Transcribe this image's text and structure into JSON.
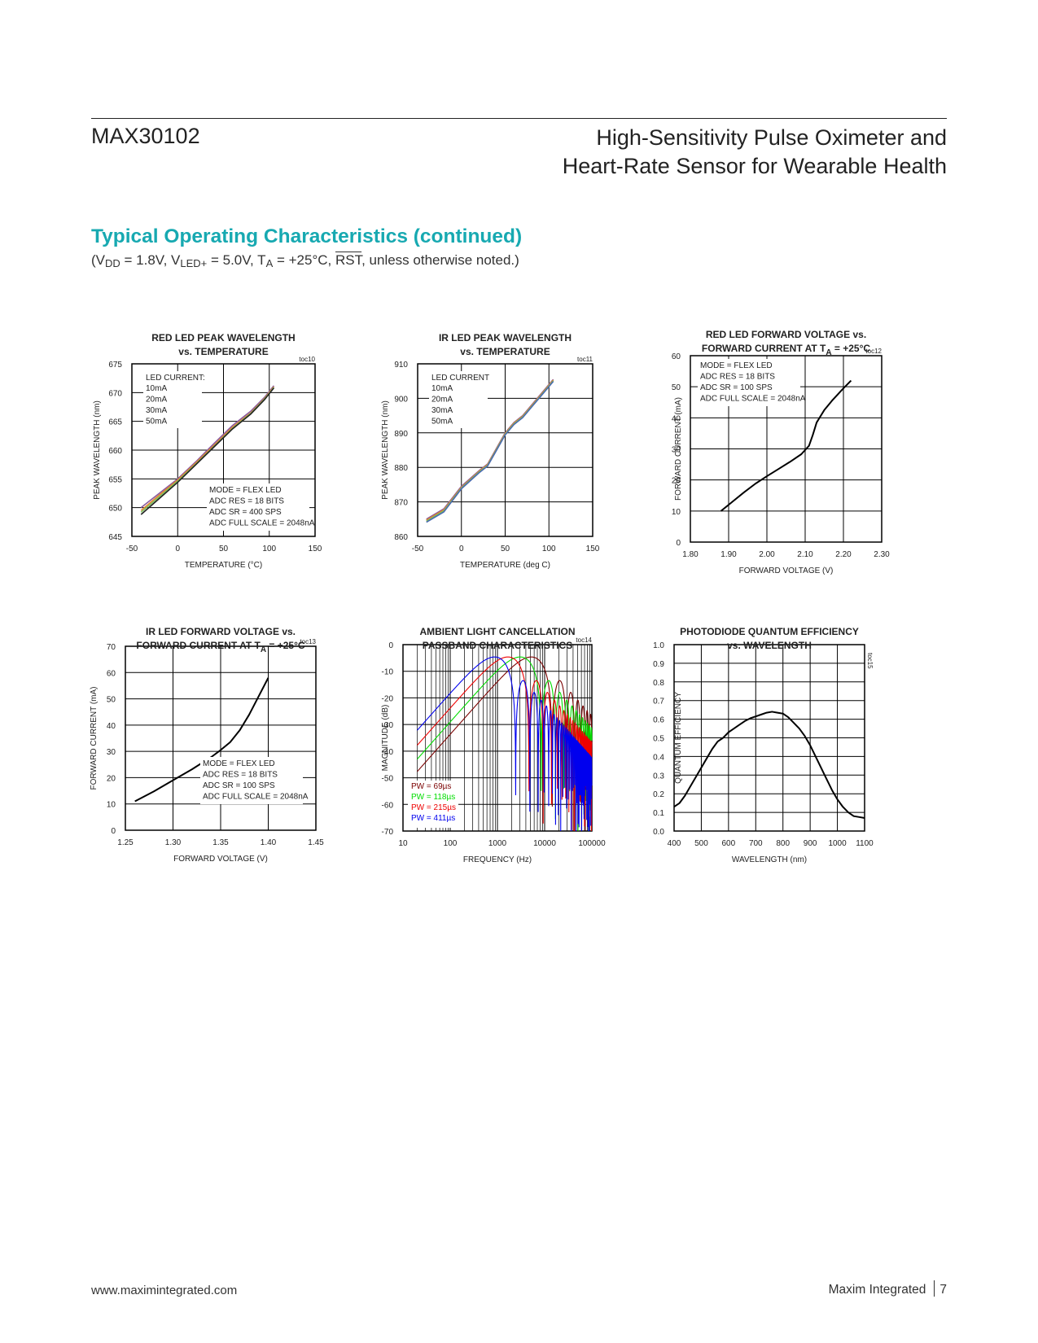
{
  "header": {
    "part_number": "MAX30102",
    "title_line1": "High-Sensitivity Pulse Oximeter and",
    "title_line2": "Heart-Rate Sensor for Wearable Health"
  },
  "section": {
    "heading": "Typical Operating Characteristics (continued)",
    "conditions": {
      "open": "(V",
      "vdd_sub": "DD",
      "mid1": " = 1.8V, V",
      "vled_sub": "LED+",
      "mid2": " = 5.0V, T",
      "ta_sub": "A",
      "mid3": " = +25°C, ",
      "rst": "RST",
      "tail": ", unless otherwise noted.)"
    }
  },
  "footer": {
    "url": "www.maximintegrated.com",
    "company": "Maxim Integrated",
    "page": "7"
  },
  "chart_data": [
    {
      "type": "line",
      "toc": "toc10",
      "title": [
        "RED LED PEAK WAVELENGTH",
        "vs. TEMPERATURE"
      ],
      "xlabel": "TEMPERATURE (°C)",
      "ylabel": "PEAK WAVELENGTH (nm)",
      "xlim": [
        -50,
        150
      ],
      "ylim": [
        645,
        675
      ],
      "xticks": [
        -50,
        0,
        50,
        100,
        150
      ],
      "yticks": [
        645,
        650,
        655,
        660,
        665,
        670,
        675
      ],
      "grid": true,
      "legend": {
        "title": "LED CURRENT:",
        "entries": [
          "10mA",
          "20mA",
          "30mA",
          "50mA"
        ]
      },
      "notes": [
        "MODE = FLEX LED",
        "ADC RES = 18 BITS",
        "ADC SR = 400 SPS",
        "ADC FULL SCALE = 2048nA"
      ],
      "series": [
        {
          "color": "#8a5a9e",
          "x": [
            -40,
            -20,
            0,
            20,
            40,
            60,
            80,
            95,
            105
          ],
          "y": [
            650.0,
            652.5,
            655.0,
            658.0,
            661.2,
            664.3,
            666.8,
            669.2,
            671.2
          ]
        },
        {
          "color": "#e5822e",
          "x": [
            -40,
            -20,
            0,
            20,
            40,
            60,
            80,
            95,
            105
          ],
          "y": [
            649.5,
            652.2,
            654.8,
            657.8,
            660.9,
            664.0,
            666.5,
            669.0,
            671.0
          ]
        },
        {
          "color": "#7bbf5e",
          "x": [
            -40,
            -20,
            0,
            20,
            40,
            60,
            80,
            95,
            105
          ],
          "y": [
            649.2,
            651.9,
            654.6,
            657.6,
            660.7,
            663.8,
            666.4,
            668.9,
            670.9
          ]
        },
        {
          "color": "#222222",
          "x": [
            -40,
            -20,
            0,
            20,
            40,
            60,
            80,
            95,
            105
          ],
          "y": [
            648.8,
            651.6,
            654.4,
            657.5,
            660.6,
            663.7,
            666.3,
            668.8,
            670.8
          ]
        }
      ]
    },
    {
      "type": "line",
      "toc": "toc11",
      "title": [
        "IR LED PEAK WAVELENGTH",
        "vs. TEMPERATURE"
      ],
      "xlabel": "TEMPERATURE (deg C)",
      "ylabel": "PEAK WAVELENGTH (nm)",
      "xlim": [
        -50,
        150
      ],
      "ylim": [
        860,
        910
      ],
      "xticks": [
        -50,
        0,
        50,
        100,
        150
      ],
      "yticks": [
        860,
        870,
        880,
        890,
        900,
        910
      ],
      "grid": true,
      "legend": {
        "title": "LED CURRENT",
        "entries": [
          "10mA",
          "20mA",
          "30mA",
          "50mA"
        ]
      },
      "notes": [],
      "series": [
        {
          "color": "#8a5a9e",
          "x": [
            -40,
            -20,
            0,
            20,
            30,
            40,
            50,
            60,
            70,
            80,
            90,
            100,
            105
          ],
          "y": [
            865.0,
            868.0,
            874.5,
            879.0,
            881.0,
            885.5,
            890.0,
            893.0,
            895.0,
            898.0,
            901.0,
            904.0,
            905.5
          ]
        },
        {
          "color": "#e5822e",
          "x": [
            -40,
            -20,
            0,
            20,
            30,
            40,
            50,
            60,
            70,
            80,
            90,
            100,
            105
          ],
          "y": [
            864.7,
            867.7,
            874.2,
            878.8,
            880.8,
            885.3,
            889.8,
            892.8,
            894.8,
            897.8,
            900.8,
            903.8,
            905.3
          ]
        },
        {
          "color": "#7bbf5e",
          "x": [
            -40,
            -20,
            0,
            20,
            30,
            40,
            50,
            60,
            70,
            80,
            90,
            100,
            105
          ],
          "y": [
            864.4,
            867.4,
            874.0,
            878.6,
            880.6,
            885.1,
            889.6,
            892.6,
            894.6,
            897.6,
            900.6,
            903.6,
            905.1
          ]
        },
        {
          "color": "#4a6ab0",
          "x": [
            -40,
            -20,
            0,
            20,
            30,
            40,
            50,
            60,
            70,
            80,
            90,
            100,
            105
          ],
          "y": [
            864.1,
            867.1,
            873.8,
            878.4,
            880.4,
            884.9,
            889.4,
            892.4,
            894.4,
            897.4,
            900.4,
            903.4,
            904.9
          ]
        }
      ]
    },
    {
      "type": "line",
      "toc": "toc12",
      "title": [
        "RED LED FORWARD VOLTAGE vs.",
        "FORWARD CURRENT AT T",
        "A",
        " = +25°C"
      ],
      "xlabel": "FORWARD VOLTAGE (V)",
      "ylabel": "FORWARD CURRENT (mA)",
      "xlim": [
        1.8,
        2.3
      ],
      "ylim": [
        0,
        60
      ],
      "xticks": [
        "1.80",
        "1.90",
        "2.00",
        "2.10",
        "2.20",
        "2.30"
      ],
      "yticks": [
        0,
        10,
        20,
        30,
        40,
        50,
        60
      ],
      "grid": true,
      "notes": [
        "MODE = FLEX LED",
        "ADC RES = 18 BITS",
        "ADC SR = 100 SPS",
        "ADC FULL SCALE = 2048nA"
      ],
      "series": [
        {
          "color": "#000000",
          "x": [
            1.88,
            1.91,
            1.94,
            1.97,
            2.0,
            2.03,
            2.06,
            2.09,
            2.11,
            2.12,
            2.13,
            2.15,
            2.17,
            2.2,
            2.22
          ],
          "y": [
            10.0,
            13.0,
            16.0,
            18.8,
            21.2,
            23.5,
            25.8,
            28.3,
            31.0,
            34.5,
            38.5,
            42.5,
            45.5,
            49.5,
            52.0
          ]
        }
      ]
    },
    {
      "type": "line",
      "toc": "toc13",
      "title": [
        "IR LED FORWARD VOLTAGE vs.",
        "FORWARD CURRENT AT T",
        "A",
        " = +25°C"
      ],
      "xlabel": "FORWARD VOLTAGE (V)",
      "ylabel": "FORWARD CURRENT (mA)",
      "xlim": [
        1.25,
        1.45
      ],
      "ylim": [
        0,
        70
      ],
      "xticks": [
        "1.25",
        "1.30",
        "1.35",
        "1.40",
        "1.45"
      ],
      "yticks": [
        0,
        10,
        20,
        30,
        40,
        50,
        60,
        70
      ],
      "grid": true,
      "notes": [
        "MODE = FLEX LED",
        "ADC RES = 18 BITS",
        "ADC SR = 100 SPS",
        "ADC FULL SCALE = 2048nA"
      ],
      "series": [
        {
          "color": "#000000",
          "x": [
            1.26,
            1.28,
            1.3,
            1.32,
            1.34,
            1.35,
            1.36,
            1.37,
            1.38,
            1.39,
            1.4
          ],
          "y": [
            11.0,
            14.8,
            19.0,
            23.2,
            27.8,
            30.5,
            33.5,
            38.0,
            44.0,
            51.0,
            58.0
          ]
        }
      ]
    },
    {
      "type": "line",
      "toc": "toc14",
      "title": [
        "AMBIENT LIGHT CANCELLATION",
        "PASSBAND CHARACTERISTICS"
      ],
      "xlabel": "FREQUENCY (Hz)",
      "ylabel": "MAGNITUDE (dB)",
      "xscale": "log",
      "xlim": [
        10,
        100000
      ],
      "ylim": [
        -70,
        0
      ],
      "xticks": [
        "10",
        "100",
        "1000",
        "10000",
        "100000"
      ],
      "yticks": [
        0,
        -10,
        -20,
        -30,
        -40,
        -50,
        -60,
        -70
      ],
      "grid": true,
      "legend": {
        "entries": [
          "PW =  69µs",
          "PW = 118µs",
          "PW = 215µs",
          "PW = 411µs"
        ],
        "placement": "bottom-left"
      },
      "series": [
        {
          "name": "PW =  69µs",
          "color": "#7a0000",
          "pw_us": 69
        },
        {
          "name": "PW = 118µs",
          "color": "#00dd00",
          "pw_us": 118
        },
        {
          "name": "PW = 215µs",
          "color": "#ee0000",
          "pw_us": 215
        },
        {
          "name": "PW = 411µs",
          "color": "#0000ee",
          "pw_us": 411
        }
      ]
    },
    {
      "type": "line",
      "toc": "toc15",
      "title": [
        "PHOTODIODE QUANTUM EFFICIENCY",
        "vs. WAVELENGTH"
      ],
      "xlabel": "WAVELENGTH (nm)",
      "ylabel": "QUANTUM EFFICIENCY",
      "xlim": [
        400,
        1100
      ],
      "ylim": [
        0,
        1.0
      ],
      "xticks": [
        400,
        500,
        600,
        700,
        800,
        900,
        1000,
        1100
      ],
      "yticks": [
        "0.0",
        "0.1",
        "0.2",
        "0.3",
        "0.4",
        "0.5",
        "0.6",
        "0.7",
        "0.8",
        "0.9",
        "1.0"
      ],
      "grid": true,
      "series": [
        {
          "color": "#000000",
          "x": [
            400,
            420,
            440,
            460,
            480,
            500,
            520,
            540,
            560,
            580,
            600,
            620,
            640,
            660,
            680,
            700,
            720,
            740,
            760,
            780,
            800,
            820,
            840,
            860,
            880,
            900,
            920,
            940,
            960,
            980,
            1000,
            1020,
            1040,
            1060,
            1080,
            1100
          ],
          "y": [
            0.13,
            0.15,
            0.19,
            0.24,
            0.29,
            0.34,
            0.39,
            0.44,
            0.48,
            0.5,
            0.53,
            0.55,
            0.57,
            0.59,
            0.605,
            0.615,
            0.625,
            0.635,
            0.64,
            0.635,
            0.63,
            0.61,
            0.58,
            0.55,
            0.51,
            0.46,
            0.4,
            0.34,
            0.28,
            0.22,
            0.17,
            0.13,
            0.1,
            0.08,
            0.075,
            0.07
          ]
        }
      ]
    }
  ]
}
